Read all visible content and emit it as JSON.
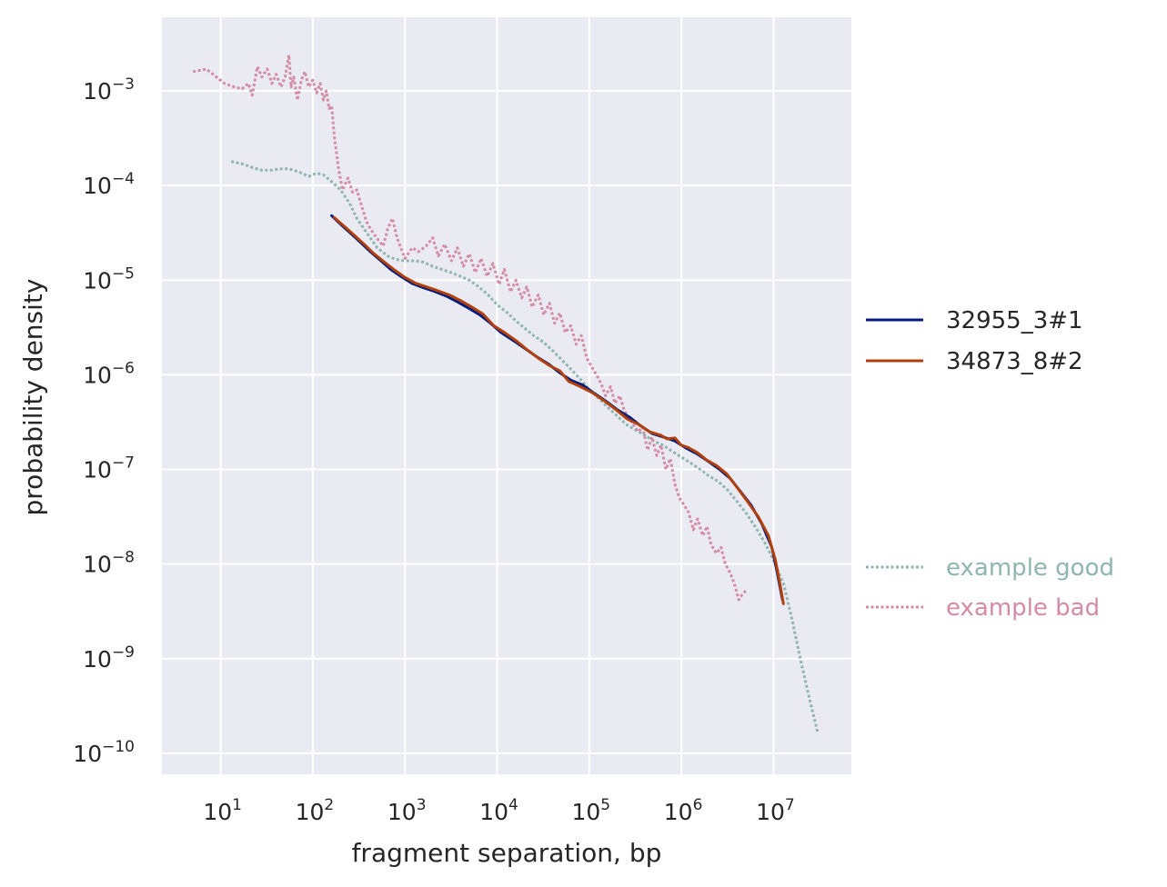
{
  "chart_data": {
    "type": "line",
    "xlabel": "fragment separation, bp",
    "ylabel": "probability density",
    "xscale": "log",
    "yscale": "log",
    "grid": true,
    "background": "#eaeaf2",
    "grid_color": "#ffffff",
    "xlim": [
      2.3,
      70000000
    ],
    "ylim": [
      6e-11,
      0.006
    ],
    "x_ticks": [
      {
        "exp": 1,
        "base": "10",
        "text": "1"
      },
      {
        "exp": 2,
        "base": "10",
        "text": "2"
      },
      {
        "exp": 3,
        "base": "10",
        "text": "3"
      },
      {
        "exp": 4,
        "base": "10",
        "text": "4"
      },
      {
        "exp": 5,
        "base": "10",
        "text": "5"
      },
      {
        "exp": 6,
        "base": "10",
        "text": "6"
      },
      {
        "exp": 7,
        "base": "10",
        "text": "7"
      }
    ],
    "y_ticks": [
      {
        "exp": -3,
        "base": "10",
        "text": "−3"
      },
      {
        "exp": -4,
        "base": "10",
        "text": "−4"
      },
      {
        "exp": -5,
        "base": "10",
        "text": "−5"
      },
      {
        "exp": -6,
        "base": "10",
        "text": "−6"
      },
      {
        "exp": -7,
        "base": "10",
        "text": "−7"
      },
      {
        "exp": -8,
        "base": "10",
        "text": "−8"
      },
      {
        "exp": -9,
        "base": "10",
        "text": "−9"
      },
      {
        "exp": -10,
        "base": "10",
        "text": "−10"
      }
    ],
    "legend": [
      {
        "label": "32955_3#1",
        "color": "#001c7f",
        "style": "solid",
        "text_color": "#262626",
        "group": "top"
      },
      {
        "label": "34873_8#2",
        "color": "#b1400d",
        "style": "solid",
        "text_color": "#262626",
        "group": "top"
      },
      {
        "label": "example good",
        "color": "#8fb5b0",
        "style": "dotted",
        "text_color": "#8fb5b0",
        "group": "bottom"
      },
      {
        "label": "example bad",
        "color": "#d48ba6",
        "style": "dotted",
        "text_color": "#d48ba6",
        "group": "bottom"
      }
    ],
    "series": [
      {
        "name": "example good",
        "color": "#8fb5b0",
        "style": "dotted",
        "points": [
          [
            13,
            0.00018
          ],
          [
            17,
            0.00017
          ],
          [
            22,
            0.000155
          ],
          [
            28,
            0.000145
          ],
          [
            35,
            0.000145
          ],
          [
            45,
            0.00015
          ],
          [
            55,
            0.00015
          ],
          [
            70,
            0.00014
          ],
          [
            90,
            0.000125
          ],
          [
            110,
            0.000135
          ],
          [
            130,
            0.00013
          ],
          [
            160,
            0.00011
          ],
          [
            200,
            9e-05
          ],
          [
            250,
            6.5e-05
          ],
          [
            300,
            4.5e-05
          ],
          [
            400,
            3e-05
          ],
          [
            500,
            2.2e-05
          ],
          [
            650,
            1.8e-05
          ],
          [
            800,
            1.65e-05
          ],
          [
            1000,
            1.6e-05
          ],
          [
            1300,
            1.6e-05
          ],
          [
            1600,
            1.55e-05
          ],
          [
            2000,
            1.4e-05
          ],
          [
            2500,
            1.3e-05
          ],
          [
            3200,
            1.2e-05
          ],
          [
            4000,
            1.1e-05
          ],
          [
            5000,
            1e-05
          ],
          [
            6300,
            8.5e-06
          ],
          [
            8000,
            7e-06
          ],
          [
            10000,
            5.5e-06
          ],
          [
            13000,
            4.5e-06
          ],
          [
            16000,
            3.7e-06
          ],
          [
            20000,
            3.1e-06
          ],
          [
            25000,
            2.6e-06
          ],
          [
            32000,
            2.2e-06
          ],
          [
            40000,
            1.8e-06
          ],
          [
            50000,
            1.45e-06
          ],
          [
            63000,
            1.15e-06
          ],
          [
            80000,
            9e-07
          ],
          [
            100000,
            7e-07
          ],
          [
            130000,
            5.5e-07
          ],
          [
            160000,
            4.5e-07
          ],
          [
            200000,
            3.7e-07
          ],
          [
            250000,
            3e-07
          ],
          [
            320000,
            2.6e-07
          ],
          [
            400000,
            2.3e-07
          ],
          [
            500000,
            2e-07
          ],
          [
            630000,
            1.8e-07
          ],
          [
            800000,
            1.55e-07
          ],
          [
            1000000,
            1.35e-07
          ],
          [
            1300000,
            1.15e-07
          ],
          [
            1600000,
            1e-07
          ],
          [
            2000000,
            8.5e-08
          ],
          [
            2500000,
            7.5e-08
          ],
          [
            3200000,
            6e-08
          ],
          [
            4000000,
            4.6e-08
          ],
          [
            5000000,
            3.5e-08
          ],
          [
            6300000,
            2.5e-08
          ],
          [
            8000000,
            1.7e-08
          ],
          [
            10000000,
            1.1e-08
          ],
          [
            13000000,
            6e-09
          ],
          [
            16000000,
            2.5e-09
          ],
          [
            20000000,
            9e-10
          ],
          [
            25000000,
            3.5e-10
          ],
          [
            30000000,
            1.7e-10
          ]
        ]
      },
      {
        "name": "example bad",
        "color": "#d48ba6",
        "style": "dotted",
        "points": [
          [
            5,
            0.0016
          ],
          [
            7,
            0.0017
          ],
          [
            9,
            0.0014
          ],
          [
            11,
            0.0012
          ],
          [
            14,
            0.0011
          ],
          [
            17,
            0.00105
          ],
          [
            20,
            0.0012
          ],
          [
            22,
            0.0009
          ],
          [
            25,
            0.0018
          ],
          [
            28,
            0.0014
          ],
          [
            32,
            0.0017
          ],
          [
            36,
            0.0012
          ],
          [
            40,
            0.0015
          ],
          [
            45,
            0.0011
          ],
          [
            50,
            0.0014
          ],
          [
            55,
            0.0024
          ],
          [
            58,
            0.0011
          ],
          [
            62,
            0.0014
          ],
          [
            68,
            0.0008
          ],
          [
            75,
            0.0013
          ],
          [
            82,
            0.0016
          ],
          [
            90,
            0.0011
          ],
          [
            100,
            0.0013
          ],
          [
            110,
            0.00095
          ],
          [
            120,
            0.0012
          ],
          [
            130,
            0.0008
          ],
          [
            140,
            0.001
          ],
          [
            150,
            0.00065
          ],
          [
            160,
            0.0007
          ],
          [
            170,
            0.00035
          ],
          [
            190,
            0.00015
          ],
          [
            210,
            9e-05
          ],
          [
            240,
            0.00012
          ],
          [
            270,
            8.5e-05
          ],
          [
            300,
            9e-05
          ],
          [
            340,
            6e-05
          ],
          [
            380,
            4.2e-05
          ],
          [
            420,
            3.5e-05
          ],
          [
            470,
            3e-05
          ],
          [
            520,
            2.6e-05
          ],
          [
            580,
            2.3e-05
          ],
          [
            650,
            3.5e-05
          ],
          [
            730,
            4.5e-05
          ],
          [
            820,
            2.8e-05
          ],
          [
            900,
            2.2e-05
          ],
          [
            1000,
            1.7e-05
          ],
          [
            1200,
            2.2e-05
          ],
          [
            1400,
            2e-05
          ],
          [
            1700,
            2.3e-05
          ],
          [
            2000,
            2.8e-05
          ],
          [
            2300,
            1.8e-05
          ],
          [
            2700,
            2.4e-05
          ],
          [
            3200,
            1.6e-05
          ],
          [
            3700,
            2.2e-05
          ],
          [
            4300,
            1.4e-05
          ],
          [
            5000,
            1.9e-05
          ],
          [
            5800,
            1.2e-05
          ],
          [
            6700,
            1.7e-05
          ],
          [
            7800,
            1.1e-05
          ],
          [
            9000,
            1.5e-05
          ],
          [
            10500,
            9e-06
          ],
          [
            12000,
            1.3e-05
          ],
          [
            14000,
            7.5e-06
          ],
          [
            16000,
            1e-05
          ],
          [
            18500,
            6.5e-06
          ],
          [
            21000,
            8.5e-06
          ],
          [
            24000,
            5.2e-06
          ],
          [
            28000,
            7e-06
          ],
          [
            32000,
            4.3e-06
          ],
          [
            37000,
            5.7e-06
          ],
          [
            42000,
            3.5e-06
          ],
          [
            48000,
            4.5e-06
          ],
          [
            55000,
            2.8e-06
          ],
          [
            63000,
            3.3e-06
          ],
          [
            72000,
            2.1e-06
          ],
          [
            82000,
            2.6e-06
          ],
          [
            94000,
            1.5e-06
          ],
          [
            107000,
            1.2e-06
          ],
          [
            120000,
            1e-06
          ],
          [
            135000,
            8e-07
          ],
          [
            150000,
            6e-07
          ],
          [
            170000,
            7.5e-07
          ],
          [
            190000,
            5e-07
          ],
          [
            215000,
            6e-07
          ],
          [
            240000,
            4.2e-07
          ],
          [
            270000,
            3.5e-07
          ],
          [
            300000,
            3e-07
          ],
          [
            340000,
            2.5e-07
          ],
          [
            380000,
            2.8e-07
          ],
          [
            430000,
            1.6e-07
          ],
          [
            480000,
            2.2e-07
          ],
          [
            540000,
            1.4e-07
          ],
          [
            600000,
            1.8e-07
          ],
          [
            680000,
            1e-07
          ],
          [
            760000,
            1.3e-07
          ],
          [
            850000,
            7e-08
          ],
          [
            950000,
            5e-08
          ],
          [
            1070000,
            4.2e-08
          ],
          [
            1200000,
            3.5e-08
          ],
          [
            1350000,
            2.3e-08
          ],
          [
            1500000,
            3e-08
          ],
          [
            1700000,
            2e-08
          ],
          [
            1900000,
            2.5e-08
          ],
          [
            2100000,
            1.6e-08
          ],
          [
            2400000,
            1.3e-08
          ],
          [
            2700000,
            1.5e-08
          ],
          [
            3000000,
            1e-08
          ],
          [
            3400000,
            8e-09
          ],
          [
            3800000,
            6e-09
          ],
          [
            4200000,
            4.2e-09
          ],
          [
            4600000,
            4.8e-09
          ],
          [
            5000000,
            5.2e-09
          ]
        ]
      },
      {
        "name": "32955_3#1",
        "color": "#001c7f",
        "style": "solid",
        "points": [
          [
            160,
            4.8e-05
          ],
          [
            200,
            3.9e-05
          ],
          [
            260,
            3.1e-05
          ],
          [
            330,
            2.5e-05
          ],
          [
            420,
            2e-05
          ],
          [
            550,
            1.6e-05
          ],
          [
            700,
            1.3e-05
          ],
          [
            900,
            1.1e-05
          ],
          [
            1200,
            9.2e-06
          ],
          [
            1600,
            8.3e-06
          ],
          [
            2100,
            7.6e-06
          ],
          [
            2800,
            6.8e-06
          ],
          [
            3700,
            5.9e-06
          ],
          [
            5000,
            5e-06
          ],
          [
            6500,
            4.3e-06
          ],
          [
            8500,
            3.5e-06
          ],
          [
            11000,
            2.8e-06
          ],
          [
            15000,
            2.3e-06
          ],
          [
            20000,
            1.9e-06
          ],
          [
            27000,
            1.55e-06
          ],
          [
            36000,
            1.3e-06
          ],
          [
            48000,
            1.05e-06
          ],
          [
            64000,
            8.7e-07
          ],
          [
            85000,
            7.8e-07
          ],
          [
            110000,
            6.5e-07
          ],
          [
            150000,
            5.3e-07
          ],
          [
            200000,
            4.3e-07
          ],
          [
            270000,
            3.6e-07
          ],
          [
            360000,
            2.9e-07
          ],
          [
            480000,
            2.4e-07
          ],
          [
            640000,
            2.2e-07
          ],
          [
            850000,
            2e-07
          ],
          [
            1100000,
            1.7e-07
          ],
          [
            1500000,
            1.45e-07
          ],
          [
            2000000,
            1.2e-07
          ],
          [
            2600000,
            1e-07
          ],
          [
            3400000,
            8e-08
          ],
          [
            4400000,
            5.8e-08
          ],
          [
            5700000,
            4.2e-08
          ],
          [
            7400000,
            2.7e-08
          ],
          [
            9600000,
            1.5e-08
          ],
          [
            11000000,
            8e-09
          ],
          [
            12500000,
            4.2e-09
          ]
        ]
      },
      {
        "name": "34873_8#2",
        "color": "#b1400d",
        "style": "solid",
        "points": [
          [
            170,
            4.6e-05
          ],
          [
            220,
            3.7e-05
          ],
          [
            280,
            3e-05
          ],
          [
            360,
            2.4e-05
          ],
          [
            460,
            1.9e-05
          ],
          [
            600,
            1.55e-05
          ],
          [
            780,
            1.27e-05
          ],
          [
            1000,
            1.07e-05
          ],
          [
            1300,
            9.3e-06
          ],
          [
            1700,
            8.5e-06
          ],
          [
            2300,
            7.7e-06
          ],
          [
            3000,
            7e-06
          ],
          [
            4000,
            6.1e-06
          ],
          [
            5300,
            5.2e-06
          ],
          [
            7000,
            4.4e-06
          ],
          [
            9200,
            3.3e-06
          ],
          [
            12000,
            2.8e-06
          ],
          [
            16000,
            2.3e-06
          ],
          [
            21000,
            1.85e-06
          ],
          [
            28000,
            1.5e-06
          ],
          [
            37000,
            1.25e-06
          ],
          [
            48000,
            1.1e-06
          ],
          [
            60000,
            8.5e-07
          ],
          [
            80000,
            7.5e-07
          ],
          [
            110000,
            6.4e-07
          ],
          [
            150000,
            5.2e-07
          ],
          [
            200000,
            4.2e-07
          ],
          [
            260000,
            3.4e-07
          ],
          [
            340000,
            3e-07
          ],
          [
            450000,
            2.5e-07
          ],
          [
            600000,
            2.3e-07
          ],
          [
            700000,
            2.1e-07
          ],
          [
            850000,
            2.15e-07
          ],
          [
            1000000,
            1.8e-07
          ],
          [
            1200000,
            1.7e-07
          ],
          [
            1500000,
            1.5e-07
          ],
          [
            1900000,
            1.25e-07
          ],
          [
            2400000,
            1.1e-07
          ],
          [
            3100000,
            9e-08
          ],
          [
            4000000,
            6.5e-08
          ],
          [
            5200000,
            4.6e-08
          ],
          [
            6800000,
            3.2e-08
          ],
          [
            8800000,
            2e-08
          ],
          [
            10500000,
            1.1e-08
          ],
          [
            11800000,
            6e-09
          ],
          [
            12800000,
            3.8e-09
          ]
        ]
      }
    ]
  }
}
